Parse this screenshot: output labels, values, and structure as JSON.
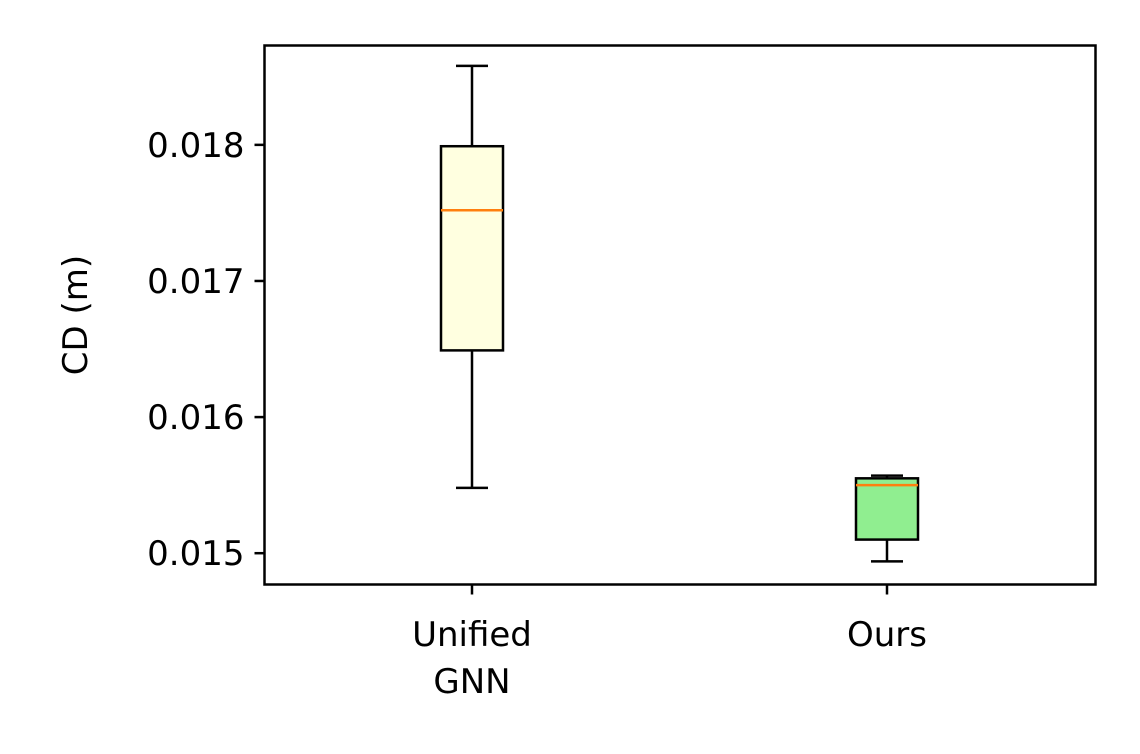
{
  "chart_data": {
    "type": "box",
    "title": "",
    "xlabel": "",
    "ylabel": "CD (m)",
    "ylim": [
      0.01477,
      0.01873
    ],
    "yticks": [
      0.015,
      0.016,
      0.017,
      0.018
    ],
    "ytick_labels": [
      "0.015",
      "0.016",
      "0.017",
      "0.018"
    ],
    "grid": false,
    "legend": "none",
    "categories": [
      {
        "label_lines": [
          "Unified",
          "GNN"
        ]
      },
      {
        "label_lines": [
          "Ours"
        ]
      }
    ],
    "boxes": [
      {
        "whisker_low": 0.01548,
        "q1": 0.01649,
        "median": 0.01752,
        "q3": 0.01799,
        "whisker_high": 0.01858,
        "fill": "#ffffe0"
      },
      {
        "whisker_low": 0.01494,
        "q1": 0.0151,
        "median": 0.0155,
        "q3": 0.01555,
        "whisker_high": 0.01557,
        "fill": "#90ee90"
      }
    ],
    "median_color": "#ff7f0e",
    "line_color": "#000000"
  }
}
